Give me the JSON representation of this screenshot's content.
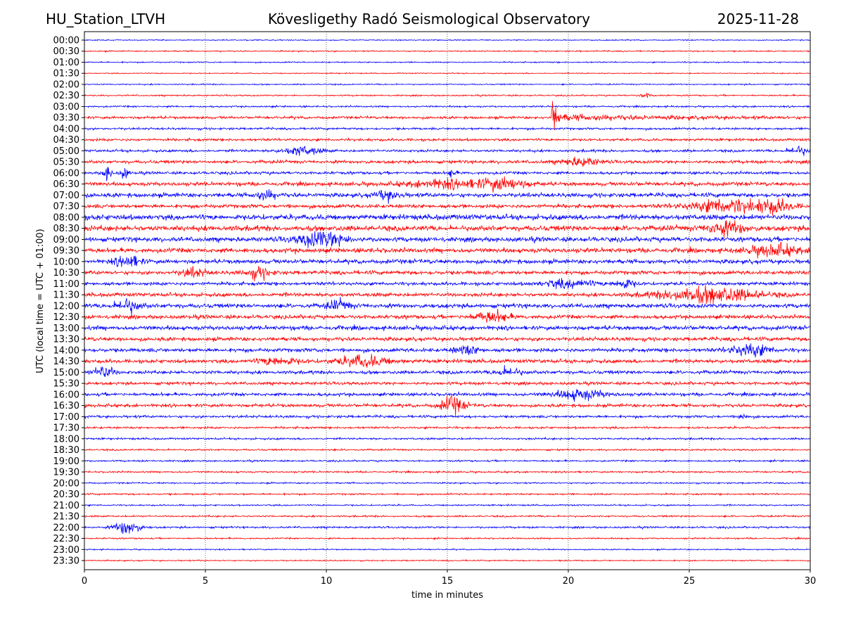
{
  "header": {
    "station": "HU_Station_LTVH",
    "observatory": "Kövesligethy Radó Seismological Observatory",
    "date": "2025-11-28"
  },
  "chart_data": {
    "type": "line",
    "title": "Kövesligethy Radó Seismological Observatory",
    "xlabel": "time in minutes",
    "ylabel": "UTC (local time = UTC + 01:00)",
    "xlim": [
      0,
      30
    ],
    "xticks": [
      "0",
      "5",
      "10",
      "15",
      "20",
      "25",
      "30"
    ],
    "xtick_values": [
      0,
      5,
      10,
      15,
      20,
      25,
      30
    ],
    "grid": "vertical dotted at x ticks",
    "colors": [
      "#0000ff",
      "#ff0000"
    ],
    "rows": [
      "00:00",
      "00:30",
      "01:00",
      "01:30",
      "02:00",
      "02:30",
      "03:00",
      "03:30",
      "04:00",
      "04:30",
      "05:00",
      "05:30",
      "06:00",
      "06:30",
      "07:00",
      "07:30",
      "08:00",
      "08:30",
      "09:00",
      "09:30",
      "10:00",
      "10:30",
      "11:00",
      "11:30",
      "12:00",
      "12:30",
      "13:00",
      "13:30",
      "14:00",
      "14:30",
      "15:00",
      "15:30",
      "16:00",
      "16:30",
      "17:00",
      "17:30",
      "18:00",
      "18:30",
      "19:00",
      "19:30",
      "20:00",
      "20:30",
      "21:00",
      "21:30",
      "22:00",
      "22:30",
      "23:00",
      "23:30"
    ],
    "noise_level": [
      0.5,
      0.6,
      0.6,
      0.5,
      0.6,
      0.7,
      0.8,
      1.2,
      1.0,
      1.2,
      1.2,
      1.5,
      1.3,
      1.8,
      2.0,
      1.8,
      2.5,
      2.5,
      2.2,
      2.2,
      2.0,
      1.8,
      1.6,
      1.8,
      2.0,
      1.8,
      2.0,
      1.8,
      1.8,
      1.8,
      1.6,
      1.4,
      1.5,
      1.5,
      1.2,
      1.0,
      0.9,
      0.8,
      0.8,
      0.8,
      0.7,
      0.8,
      0.7,
      0.8,
      0.9,
      0.7,
      0.6,
      0.6
    ],
    "events": [
      {
        "row": "03:30",
        "minute": 19.3,
        "amplitude": 25,
        "duration": 10,
        "kind": "earthquake"
      },
      {
        "row": "02:30",
        "minute": 23.2,
        "amplitude": 2,
        "duration": 0.5,
        "kind": "burst"
      },
      {
        "row": "05:00",
        "minute": 9.0,
        "amplitude": 4,
        "duration": 1.5,
        "kind": "burst"
      },
      {
        "row": "05:00",
        "minute": 29.5,
        "amplitude": 4,
        "duration": 0.8,
        "kind": "burst"
      },
      {
        "row": "05:30",
        "minute": 20.5,
        "amplitude": 4,
        "duration": 1.5,
        "kind": "burst"
      },
      {
        "row": "06:00",
        "minute": 0.95,
        "amplitude": 8,
        "duration": 0.3,
        "kind": "burst"
      },
      {
        "row": "06:00",
        "minute": 1.65,
        "amplitude": 6,
        "duration": 0.3,
        "kind": "burst"
      },
      {
        "row": "06:00",
        "minute": 15.2,
        "amplitude": 4,
        "duration": 0.3,
        "kind": "burst"
      },
      {
        "row": "06:30",
        "minute": 17.3,
        "amplitude": 5,
        "duration": 2,
        "kind": "burst"
      },
      {
        "row": "06:30",
        "minute": 15.0,
        "amplitude": 4,
        "duration": 3,
        "kind": "burst"
      },
      {
        "row": "07:00",
        "minute": 12.5,
        "amplitude": 4,
        "duration": 1,
        "kind": "burst"
      },
      {
        "row": "07:00",
        "minute": 7.5,
        "amplitude": 4,
        "duration": 0.8,
        "kind": "burst"
      },
      {
        "row": "07:30",
        "minute": 26.5,
        "amplitude": 6,
        "duration": 3,
        "kind": "burst"
      },
      {
        "row": "07:30",
        "minute": 28.5,
        "amplitude": 6,
        "duration": 1.5,
        "kind": "burst"
      },
      {
        "row": "08:30",
        "minute": 26.5,
        "amplitude": 6,
        "duration": 1.5,
        "kind": "burst"
      },
      {
        "row": "09:00",
        "minute": 9.8,
        "amplitude": 7,
        "duration": 2,
        "kind": "burst"
      },
      {
        "row": "09:30",
        "minute": 28.5,
        "amplitude": 5,
        "duration": 2,
        "kind": "burst"
      },
      {
        "row": "10:00",
        "minute": 1.8,
        "amplitude": 6,
        "duration": 1,
        "kind": "burst"
      },
      {
        "row": "10:30",
        "minute": 7.2,
        "amplitude": 5,
        "duration": 1,
        "kind": "burst"
      },
      {
        "row": "10:30",
        "minute": 4.5,
        "amplitude": 4,
        "duration": 1,
        "kind": "burst"
      },
      {
        "row": "11:00",
        "minute": 22.3,
        "amplitude": 5,
        "duration": 0.8,
        "kind": "burst"
      },
      {
        "row": "11:00",
        "minute": 20.0,
        "amplitude": 4,
        "duration": 2,
        "kind": "burst"
      },
      {
        "row": "11:30",
        "minute": 25.8,
        "amplitude": 7,
        "duration": 4,
        "kind": "burst"
      },
      {
        "row": "12:00",
        "minute": 1.8,
        "amplitude": 6,
        "duration": 1,
        "kind": "burst"
      },
      {
        "row": "12:00",
        "minute": 10.5,
        "amplitude": 4,
        "duration": 1,
        "kind": "burst"
      },
      {
        "row": "12:30",
        "minute": 16.8,
        "amplitude": 5,
        "duration": 1.5,
        "kind": "burst"
      },
      {
        "row": "14:00",
        "minute": 27.5,
        "amplitude": 6,
        "duration": 1.5,
        "kind": "burst"
      },
      {
        "row": "14:00",
        "minute": 15.8,
        "amplitude": 4,
        "duration": 1,
        "kind": "burst"
      },
      {
        "row": "14:30",
        "minute": 11.5,
        "amplitude": 5,
        "duration": 2,
        "kind": "burst"
      },
      {
        "row": "14:30",
        "minute": 8.0,
        "amplitude": 4,
        "duration": 1.5,
        "kind": "burst"
      },
      {
        "row": "15:00",
        "minute": 0.8,
        "amplitude": 6,
        "duration": 0.8,
        "kind": "burst"
      },
      {
        "row": "15:00",
        "minute": 17.5,
        "amplitude": 4,
        "duration": 1,
        "kind": "burst"
      },
      {
        "row": "16:00",
        "minute": 20.5,
        "amplitude": 5,
        "duration": 2,
        "kind": "burst"
      },
      {
        "row": "16:30",
        "minute": 15.2,
        "amplitude": 8,
        "duration": 1,
        "kind": "burst"
      },
      {
        "row": "17:00",
        "minute": 27.2,
        "amplitude": 4,
        "duration": 0.3,
        "kind": "burst"
      },
      {
        "row": "22:00",
        "minute": 1.8,
        "amplitude": 7,
        "duration": 1,
        "kind": "burst"
      }
    ]
  }
}
